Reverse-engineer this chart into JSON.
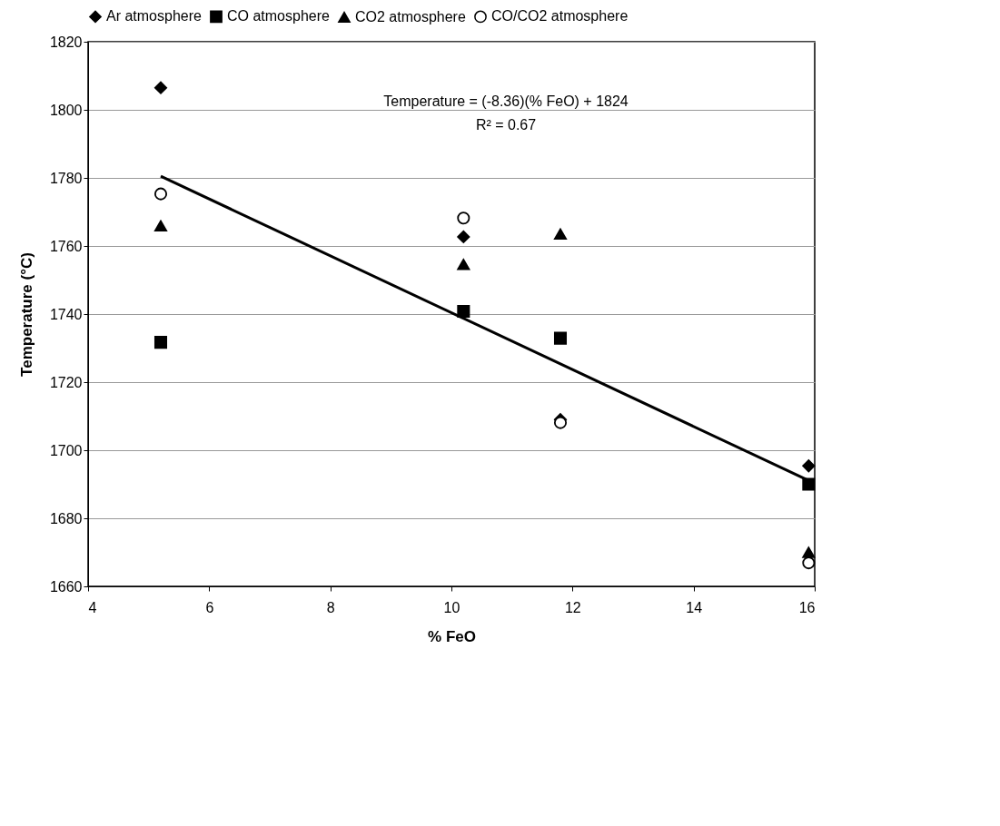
{
  "chart_data": {
    "type": "scatter",
    "xlabel": "% FeO",
    "ylabel": "Temperature (°C)",
    "annotations": [
      "Temperature = (-8.36)(% FeO) + 1824",
      "R² = 0.67"
    ],
    "x": [
      5.2,
      10.2,
      11.8,
      15.9
    ],
    "series": [
      {
        "name": "Ar atmosphere",
        "color": "#000000",
        "marker": "diamond",
        "values": [
          1806.5,
          1762.7,
          1709,
          1695.4
        ]
      },
      {
        "name": "CO atmosphere",
        "color": "#000000",
        "marker": "square",
        "values": [
          1731.7,
          1740.8,
          1732.9,
          1690
        ]
      },
      {
        "name": "CO2 atmosphere",
        "color": "#000000",
        "marker": "triangle",
        "values": [
          1765.9,
          1754.6,
          1763.5,
          1670
        ]
      },
      {
        "name": "CO/CO2 atmosphere",
        "color": "#000000",
        "marker": "circle",
        "values": [
          1775.3,
          1768.2,
          1708.1,
          1666.9
        ]
      },
      {
        "type": "line",
        "color": "#000000",
        "line_style": "solid",
        "x": [
          5.2,
          15.9
        ],
        "values": [
          1780.5,
          1691.1
        ]
      }
    ],
    "xlim": [
      4,
      16
    ],
    "xticks": [
      4,
      6,
      8,
      10,
      12,
      14,
      16
    ],
    "ylim": [
      1660,
      1820
    ],
    "yticks": [
      1660,
      1680,
      1700,
      1720,
      1740,
      1760,
      1780,
      1800,
      1820
    ],
    "grid": "y",
    "legend": "top"
  }
}
